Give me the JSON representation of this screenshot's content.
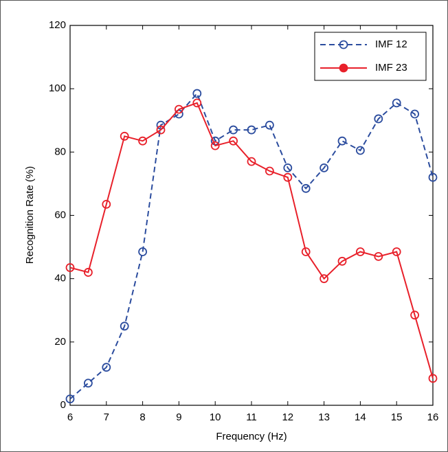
{
  "chart_data": {
    "type": "line",
    "xlabel": "Frequency (Hz)",
    "ylabel": "Recognition Rate (%)",
    "x": [
      6,
      6.5,
      7,
      7.5,
      8,
      8.5,
      9,
      9.5,
      10,
      10.5,
      11,
      11.5,
      12,
      12.5,
      13,
      13.5,
      14,
      14.5,
      15,
      15.5,
      16
    ],
    "series": [
      {
        "name": "IMF 12",
        "color": "#2b4c9e",
        "dash": true,
        "values": [
          2,
          7,
          12,
          25,
          48.5,
          88.5,
          92,
          98.5,
          83.5,
          87,
          87,
          88.5,
          75,
          68.5,
          75,
          83.5,
          80.5,
          90.5,
          95.5,
          92,
          72
        ]
      },
      {
        "name": "IMF 23",
        "color": "#e8202a",
        "dash": false,
        "values": [
          43.5,
          42,
          63.5,
          85,
          83.5,
          87,
          93.5,
          95.5,
          82,
          83.5,
          77,
          74,
          72,
          48.5,
          40,
          45.5,
          48.5,
          47,
          48.5,
          28.5,
          8.5
        ]
      }
    ],
    "xlim": [
      6,
      16
    ],
    "ylim": [
      0,
      120
    ],
    "xticks": [
      6,
      7,
      8,
      9,
      10,
      11,
      12,
      13,
      14,
      15,
      16
    ],
    "yticks": [
      0,
      20,
      40,
      60,
      80,
      100,
      120
    ],
    "legend": "top-right"
  }
}
